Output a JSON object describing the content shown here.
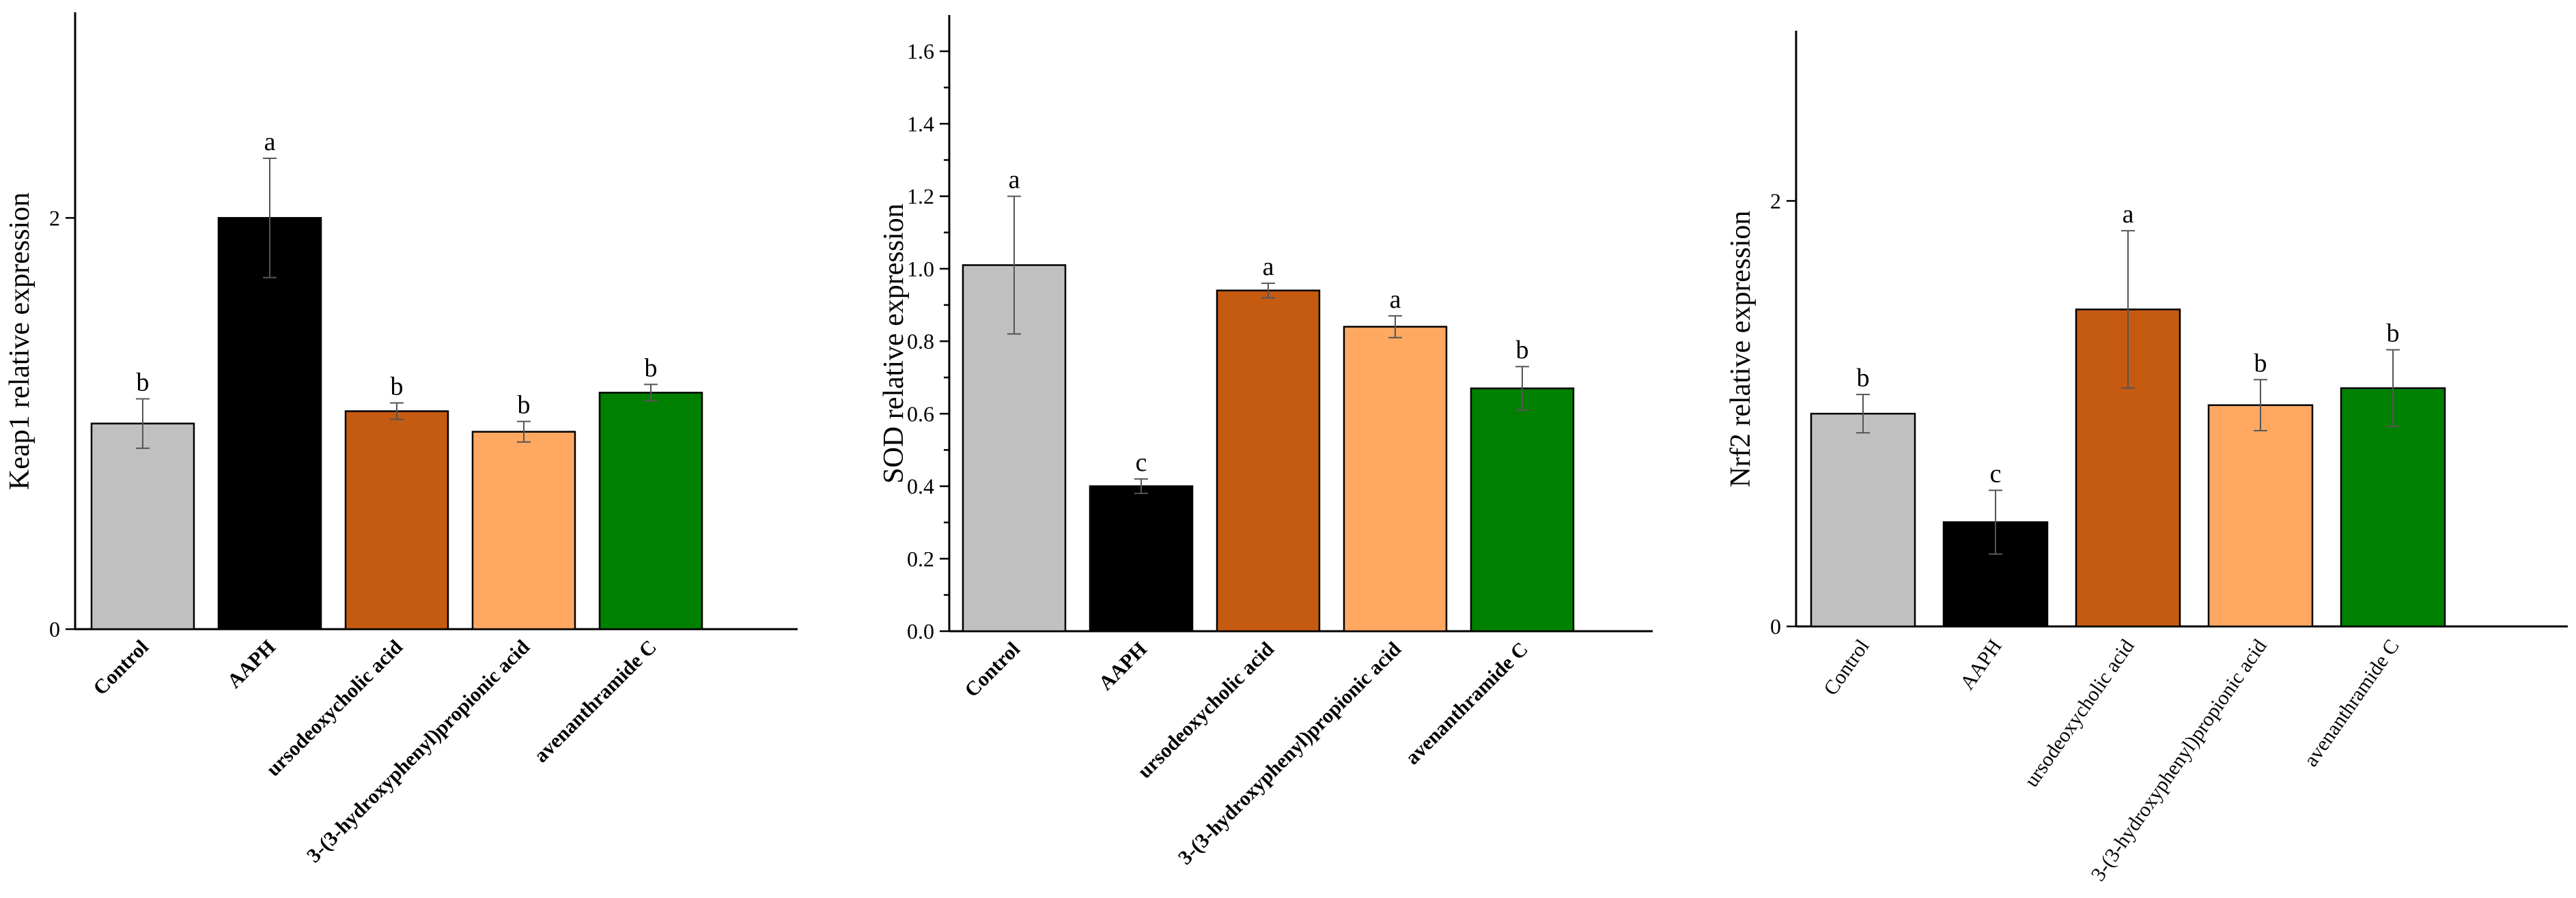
{
  "chart_data": [
    {
      "type": "bar",
      "ylabel": "Keap1 relative expression",
      "ylim": [
        0,
        3.0
      ],
      "yticks": [
        "0",
        "2"
      ],
      "ytick_values": [
        0,
        2
      ],
      "minor_ticks": false,
      "bold_xlabels": true,
      "categories": [
        "Control",
        "AAPH",
        "ursodeoxycholic acid",
        "3-(3-hydroxyphenyl)propionic acid",
        "avenanthramide C"
      ],
      "values": [
        1.0,
        2.0,
        1.06,
        0.96,
        1.15
      ],
      "errors": [
        0.12,
        0.29,
        0.04,
        0.05,
        0.04
      ],
      "letters": [
        "b",
        "a",
        "b",
        "b",
        "b"
      ],
      "colors": [
        "#c0c0c0",
        "#000000",
        "#c55a11",
        "#ffa862",
        "#008000"
      ]
    },
    {
      "type": "bar",
      "ylabel": "SOD relative expression",
      "ylim": [
        0,
        1.7
      ],
      "yticks": [
        "0.0",
        "0.2",
        "0.4",
        "0.6",
        "0.8",
        "1.0",
        "1.2",
        "1.4",
        "1.6"
      ],
      "ytick_values": [
        0.0,
        0.2,
        0.4,
        0.6,
        0.8,
        1.0,
        1.2,
        1.4,
        1.6
      ],
      "minor_ticks": true,
      "bold_xlabels": true,
      "categories": [
        "Control",
        "AAPH",
        "ursodeoxycholic acid",
        "3-(3-hydroxyphenyl)propionic acid",
        "avenanthramide C"
      ],
      "values": [
        1.01,
        0.4,
        0.94,
        0.84,
        0.67
      ],
      "errors": [
        0.19,
        0.02,
        0.02,
        0.03,
        0.06
      ],
      "letters": [
        "a",
        "c",
        "a",
        "a",
        "b"
      ],
      "colors": [
        "#c0c0c0",
        "#000000",
        "#c55a11",
        "#ffa862",
        "#008000"
      ]
    },
    {
      "type": "bar",
      "ylabel": "Nrf2  relative expression",
      "ylim": [
        0,
        2.8
      ],
      "yticks": [
        "0",
        "2"
      ],
      "ytick_values": [
        0,
        2
      ],
      "minor_ticks": false,
      "bold_xlabels": false,
      "categories": [
        "Control",
        "AAPH",
        "ursodeoxycholic acid",
        "3-(3-hydroxyphenyl)propionic acid",
        "avenanthramide C"
      ],
      "values": [
        1.0,
        0.49,
        1.49,
        1.04,
        1.12
      ],
      "errors": [
        0.09,
        0.15,
        0.37,
        0.12,
        0.18
      ],
      "letters": [
        "b",
        "c",
        "a",
        "b",
        "b"
      ],
      "colors": [
        "#c0c0c0",
        "#000000",
        "#c55a11",
        "#ffa862",
        "#008000"
      ]
    }
  ]
}
